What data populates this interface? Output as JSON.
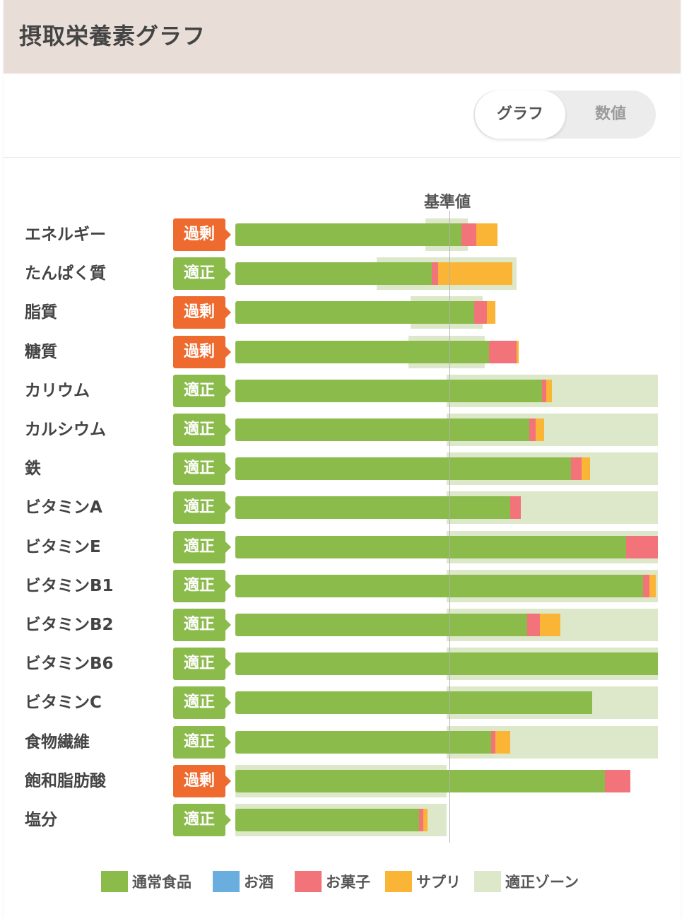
{
  "header": {
    "title": "摂取栄養素グラフ"
  },
  "view_toggle": {
    "graph_label": "グラフ",
    "numeric_label": "数値",
    "selected": "グラフ"
  },
  "reference_label": "基準値",
  "colors": {
    "normal_food": "#8bbb4b",
    "alcohol": "#6aaee0",
    "sweets": "#f2737a",
    "supplement": "#fbb536",
    "proper_zone": "#dde8ca",
    "status_excess": "#ef6a2e",
    "status_proper": "#8bbb4b"
  },
  "legend": [
    {
      "label": "通常食品",
      "color": "#8bbb4b"
    },
    {
      "label": "お酒",
      "color": "#6aaee0"
    },
    {
      "label": "お菓子",
      "color": "#f2737a"
    },
    {
      "label": "サプリ",
      "color": "#fbb536"
    },
    {
      "label": "適正ゾーン",
      "color": "#dde8ca"
    }
  ],
  "chart_data": {
    "type": "bar",
    "orientation": "horizontal",
    "stacked": true,
    "units": "% of reference value (基準値 = 100)",
    "xlim": [
      0,
      200
    ],
    "reference_value": 100,
    "series_names": [
      "通常食品",
      "お酒",
      "お菓子",
      "サプリ"
    ],
    "rows": [
      {
        "label": "エネルギー",
        "status": "過剰",
        "zone": [
          90,
          110
        ],
        "normal": 107,
        "alcohol": 0,
        "sweets": 7,
        "supplement": 10
      },
      {
        "label": "たんぱく質",
        "status": "適正",
        "zone": [
          67,
          133
        ],
        "normal": 93,
        "alcohol": 0,
        "sweets": 3,
        "supplement": 35
      },
      {
        "label": "脂質",
        "status": "過剰",
        "zone": [
          83,
          117
        ],
        "normal": 113,
        "alcohol": 0,
        "sweets": 6,
        "supplement": 4
      },
      {
        "label": "糖質",
        "status": "過剰",
        "zone": [
          82,
          118
        ],
        "normal": 120,
        "alcohol": 0,
        "sweets": 13,
        "supplement": 1
      },
      {
        "label": "カリウム",
        "status": "適正",
        "zone": [
          100,
          200
        ],
        "normal": 145,
        "alcohol": 0,
        "sweets": 2,
        "supplement": 3
      },
      {
        "label": "カルシウム",
        "status": "適正",
        "zone": [
          100,
          200
        ],
        "normal": 139,
        "alcohol": 0,
        "sweets": 3,
        "supplement": 4
      },
      {
        "label": "鉄",
        "status": "適正",
        "zone": [
          100,
          200
        ],
        "normal": 159,
        "alcohol": 0,
        "sweets": 5,
        "supplement": 4
      },
      {
        "label": "ビタミンA",
        "status": "適正",
        "zone": [
          100,
          200
        ],
        "normal": 130,
        "alcohol": 0,
        "sweets": 5,
        "supplement": 0
      },
      {
        "label": "ビタミンE",
        "status": "適正",
        "zone": [
          100,
          200
        ],
        "normal": 185,
        "alcohol": 0,
        "sweets": 15,
        "supplement": 0
      },
      {
        "label": "ビタミンB1",
        "status": "適正",
        "zone": [
          100,
          200
        ],
        "normal": 193,
        "alcohol": 0,
        "sweets": 3,
        "supplement": 3
      },
      {
        "label": "ビタミンB2",
        "status": "適正",
        "zone": [
          100,
          200
        ],
        "normal": 138,
        "alcohol": 0,
        "sweets": 6,
        "supplement": 10
      },
      {
        "label": "ビタミンB6",
        "status": "適正",
        "zone": [
          100,
          200
        ],
        "normal": 200,
        "alcohol": 0,
        "sweets": 0,
        "supplement": 0
      },
      {
        "label": "ビタミンC",
        "status": "適正",
        "zone": [
          100,
          200
        ],
        "normal": 169,
        "alcohol": 0,
        "sweets": 0,
        "supplement": 0
      },
      {
        "label": "食物繊維",
        "status": "適正",
        "zone": [
          100,
          200
        ],
        "normal": 121,
        "alcohol": 0,
        "sweets": 2,
        "supplement": 7
      },
      {
        "label": "飽和脂肪酸",
        "status": "過剰",
        "zone": [
          0,
          100
        ],
        "normal": 175,
        "alcohol": 0,
        "sweets": 12,
        "supplement": 0
      },
      {
        "label": "塩分",
        "status": "適正",
        "zone": [
          0,
          100
        ],
        "normal": 87,
        "alcohol": 0,
        "sweets": 2,
        "supplement": 2
      }
    ]
  }
}
